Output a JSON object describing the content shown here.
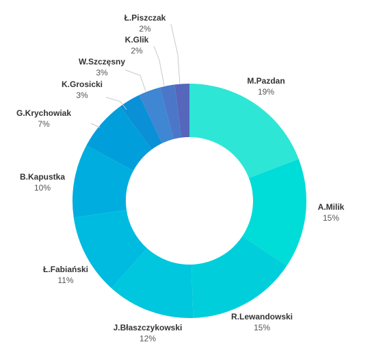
{
  "chart_data": {
    "type": "pie",
    "variant": "donut",
    "title": "",
    "slices": [
      {
        "label": "M.Pazdan",
        "value": 19,
        "display": "19%",
        "color": "#2ee6d6"
      },
      {
        "label": "A.Milik",
        "value": 15,
        "display": "15%",
        "color": "#00dcd8"
      },
      {
        "label": "R.Lewandowski",
        "value": 15,
        "display": "15%",
        "color": "#00cfdb"
      },
      {
        "label": "J.Błaszczykowski",
        "value": 12,
        "display": "12%",
        "color": "#00c6de"
      },
      {
        "label": "Ł.Fabiański",
        "value": 11,
        "display": "11%",
        "color": "#00bbe0"
      },
      {
        "label": "B.Kapustka",
        "value": 10,
        "display": "10%",
        "color": "#00addf"
      },
      {
        "label": "G.Krychowiak",
        "value": 7,
        "display": "7%",
        "color": "#009fdb"
      },
      {
        "label": "K.Grosicki",
        "value": 3,
        "display": "3%",
        "color": "#0a90d6"
      },
      {
        "label": "W.Szczęsny",
        "value": 3,
        "display": "3%",
        "color": "#3f86d3"
      },
      {
        "label": "K.Glik",
        "value": 2,
        "display": "2%",
        "color": "#4c77c8"
      },
      {
        "label": "Ł.Piszczak",
        "value": 2,
        "display": "2%",
        "color": "#5566bb"
      }
    ],
    "legend": "none"
  }
}
